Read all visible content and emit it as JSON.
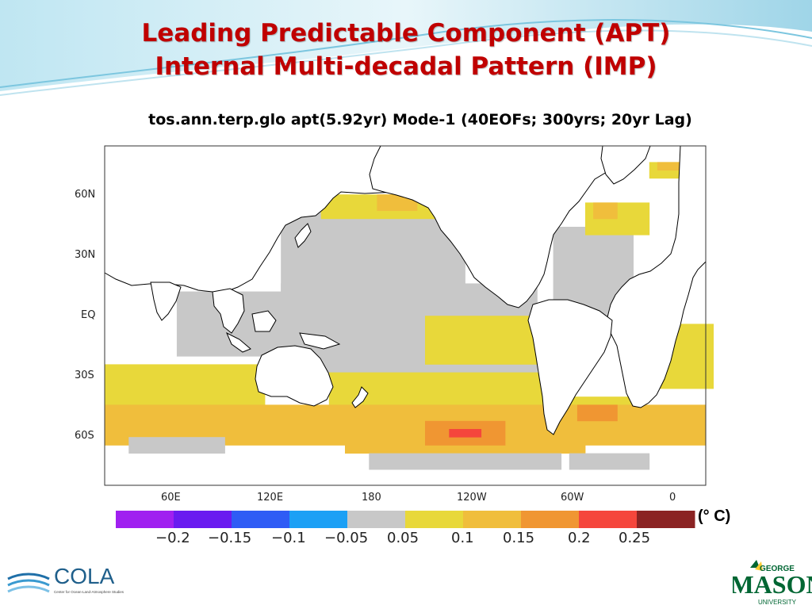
{
  "slide": {
    "title_line1": "Leading Predictable Component (APT)",
    "title_line2": "Internal Multi-decadal Pattern (IMP)",
    "subtitle": "tos.ann.terp.glo apt(5.92yr) Mode-1 (40EOFs; 300yrs; 20yr Lag)"
  },
  "map": {
    "y_labels": [
      "60N",
      "30N",
      "EQ",
      "30S",
      "60S"
    ],
    "x_labels": [
      "60E",
      "120E",
      "180",
      "120W",
      "60W",
      "0"
    ],
    "land_color": "#ffffff",
    "coast_color": "#000000",
    "missing_color": "#ffffff"
  },
  "colorbar": {
    "colors": [
      "#a020f0",
      "#6a1bf0",
      "#2f5cf5",
      "#1ca0f5",
      "#c8c8c8",
      "#e8d83a",
      "#f0be3c",
      "#f09632",
      "#f5463c",
      "#8b2323"
    ],
    "labels": [
      "−0.2",
      "−0.15",
      "−0.1",
      "−0.05",
      "0.05",
      "0.1",
      "0.15",
      "0.2",
      "0.25"
    ],
    "unit": "(°  C)"
  },
  "logos": {
    "cola_text": "COLA",
    "cola_sub": "Center for Ocean-Land-Atmosphere Studies",
    "gmu_top": "GEORGE",
    "gmu_main": "MASON",
    "gmu_bottom": "UNIVERSITY"
  }
}
